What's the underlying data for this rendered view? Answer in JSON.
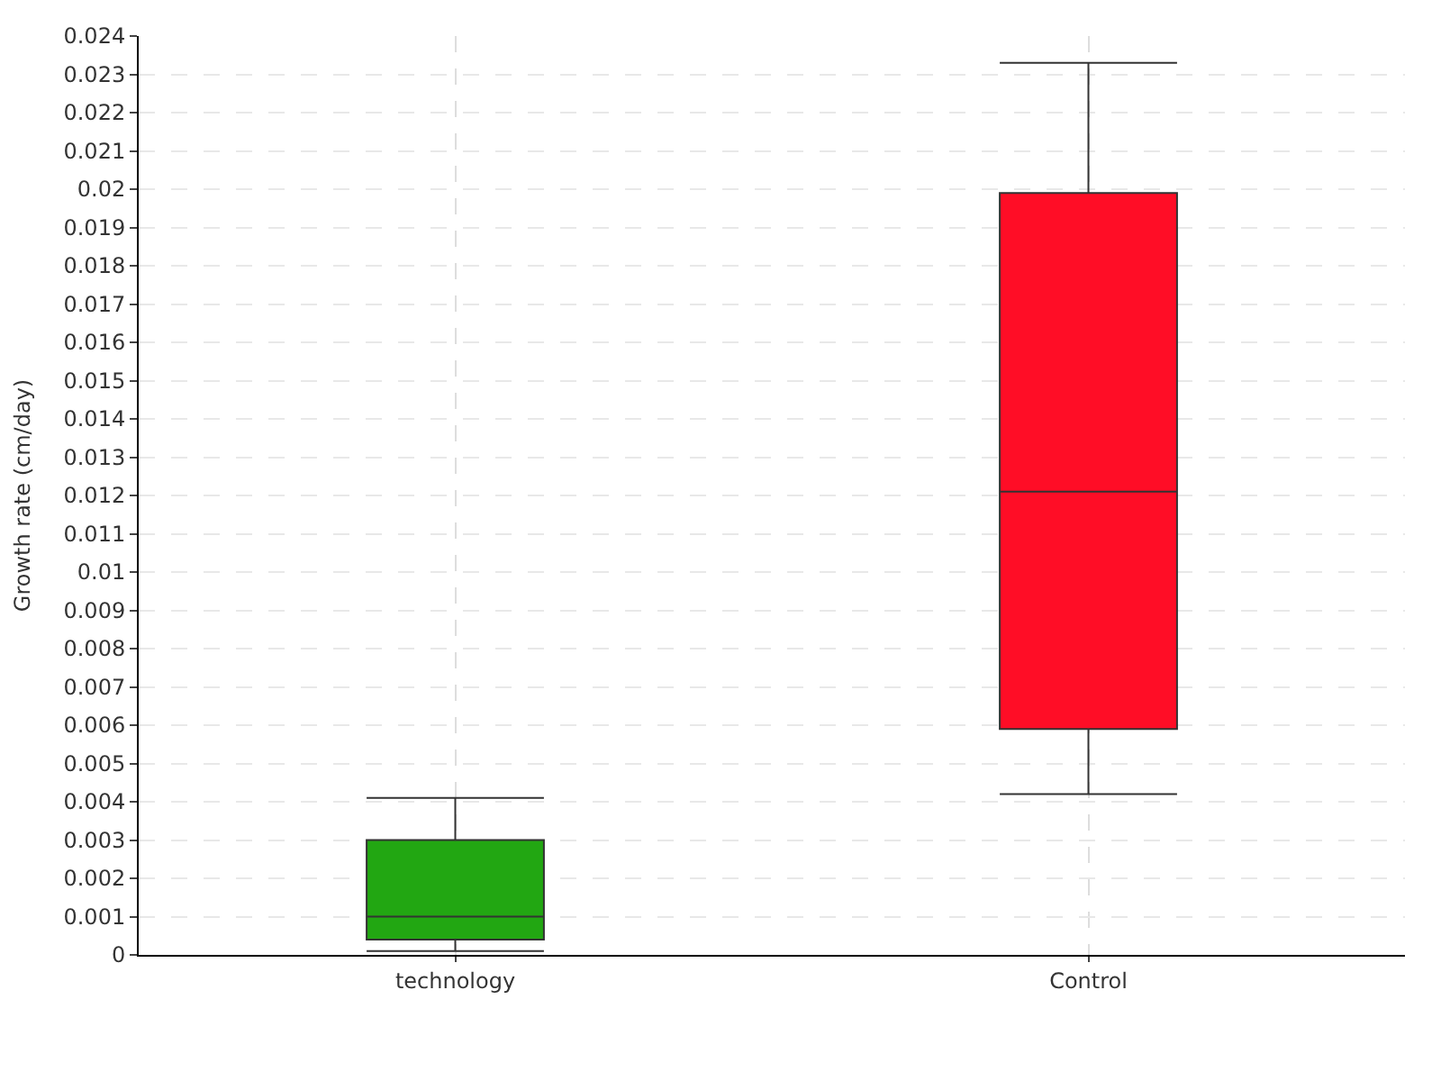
{
  "chart_data": {
    "type": "box",
    "ylabel": "Growth rate (cm/day)",
    "categories": [
      "technology",
      "Control"
    ],
    "colors": [
      "#22a712",
      "#ff0d26"
    ],
    "boxes": [
      {
        "low": 0.0001,
        "q1": 0.0004,
        "median": 0.001,
        "q3": 0.003,
        "high": 0.0041
      },
      {
        "low": 0.0042,
        "q1": 0.0059,
        "median": 0.0121,
        "q3": 0.0199,
        "high": 0.0233
      }
    ],
    "ylim": [
      0,
      0.024
    ],
    "yticks": [
      0,
      0.001,
      0.002,
      0.003,
      0.004,
      0.005,
      0.006,
      0.007,
      0.008,
      0.009,
      0.01,
      0.011,
      0.012,
      0.013,
      0.014,
      0.015,
      0.016,
      0.017,
      0.018,
      0.019,
      0.02,
      0.021,
      0.022,
      0.023,
      0.024
    ],
    "grid": true
  }
}
